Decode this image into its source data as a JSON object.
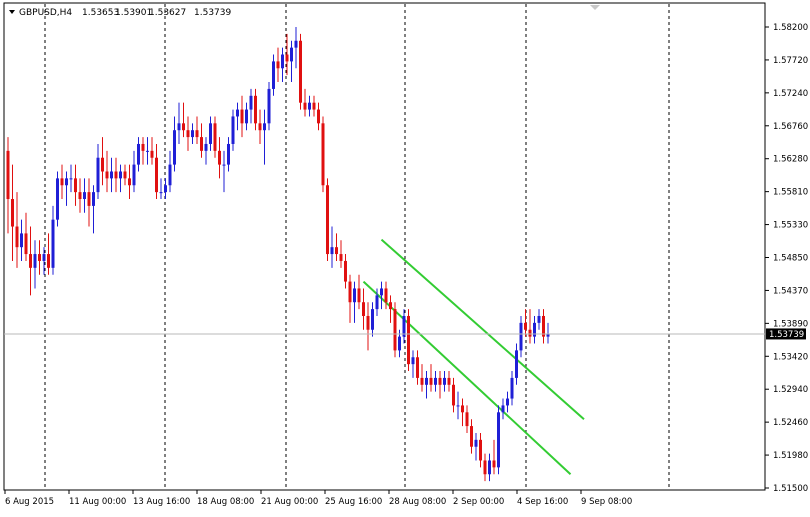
{
  "header": {
    "menu_arrow_icon": "triangle-down",
    "symbol": "GBPUSD,H4",
    "open": "1.53653",
    "high": "1.53901",
    "low": "1.53627",
    "close": "1.53739"
  },
  "current_price_label": "1.53739",
  "colors": {
    "bull": "#1f1fd6",
    "bear": "#e01010",
    "channel": "#33cc33",
    "grid": "#000000",
    "price_label_bg": "#000000",
    "price_label_fg": "#ffffff"
  },
  "chart_data": {
    "type": "candlestick",
    "symbol": "GBPUSD",
    "timeframe": "H4",
    "y_tick_labels": [
      "1.58200",
      "1.57720",
      "1.57240",
      "1.56760",
      "1.56280",
      "1.55810",
      "1.55330",
      "1.54850",
      "1.54370",
      "1.53890",
      "1.53420",
      "1.52940",
      "1.52460",
      "1.51980",
      "1.51500"
    ],
    "x_tick_labels": [
      "6 Aug 2015",
      "11 Aug 00:00",
      "13 Aug 16:00",
      "18 Aug 08:00",
      "21 Aug 00:00",
      "25 Aug 16:00",
      "28 Aug 08:00",
      "2 Sep 00:00",
      "4 Sep 16:00",
      "9 Sep 08:00"
    ],
    "ylim": [
      1.515,
      1.5835
    ],
    "candles": [
      [
        1.564,
        1.566,
        1.552,
        1.557
      ],
      [
        1.557,
        1.562,
        1.548,
        1.553
      ],
      [
        1.553,
        1.558,
        1.547,
        1.55
      ],
      [
        1.55,
        1.554,
        1.548,
        1.552
      ],
      [
        1.552,
        1.555,
        1.548,
        1.549
      ],
      [
        1.549,
        1.553,
        1.543,
        1.547
      ],
      [
        1.547,
        1.551,
        1.544,
        1.549
      ],
      [
        1.549,
        1.551,
        1.546,
        1.548
      ],
      [
        1.548,
        1.55,
        1.546,
        1.549
      ],
      [
        1.549,
        1.552,
        1.546,
        1.547
      ],
      [
        1.547,
        1.556,
        1.546,
        1.554
      ],
      [
        1.554,
        1.561,
        1.553,
        1.56
      ],
      [
        1.56,
        1.562,
        1.557,
        1.559
      ],
      [
        1.559,
        1.561,
        1.556,
        1.56
      ],
      [
        1.56,
        1.562,
        1.558,
        1.56
      ],
      [
        1.56,
        1.562,
        1.556,
        1.558
      ],
      [
        1.558,
        1.56,
        1.555,
        1.557
      ],
      [
        1.557,
        1.56,
        1.555,
        1.558
      ],
      [
        1.558,
        1.56,
        1.553,
        1.556
      ],
      [
        1.556,
        1.559,
        1.552,
        1.558
      ],
      [
        1.558,
        1.565,
        1.557,
        1.563
      ],
      [
        1.563,
        1.566,
        1.559,
        1.561
      ],
      [
        1.561,
        1.564,
        1.558,
        1.56
      ],
      [
        1.56,
        1.563,
        1.558,
        1.561
      ],
      [
        1.561,
        1.563,
        1.558,
        1.56
      ],
      [
        1.56,
        1.562,
        1.558,
        1.561
      ],
      [
        1.561,
        1.562,
        1.559,
        1.56
      ],
      [
        1.56,
        1.562,
        1.557,
        1.559
      ],
      [
        1.559,
        1.564,
        1.558,
        1.562
      ],
      [
        1.562,
        1.566,
        1.561,
        1.565
      ],
      [
        1.565,
        1.566,
        1.562,
        1.564
      ],
      [
        1.564,
        1.566,
        1.562,
        1.564
      ],
      [
        1.564,
        1.566,
        1.562,
        1.563
      ],
      [
        1.563,
        1.565,
        1.557,
        1.558
      ],
      [
        1.558,
        1.56,
        1.557,
        1.558
      ],
      [
        1.558,
        1.56,
        1.557,
        1.559
      ],
      [
        1.559,
        1.564,
        1.558,
        1.562
      ],
      [
        1.562,
        1.569,
        1.561,
        1.567
      ],
      [
        1.567,
        1.571,
        1.565,
        1.568
      ],
      [
        1.568,
        1.571,
        1.566,
        1.567
      ],
      [
        1.567,
        1.569,
        1.564,
        1.566
      ],
      [
        1.566,
        1.568,
        1.565,
        1.567
      ],
      [
        1.567,
        1.569,
        1.565,
        1.566
      ],
      [
        1.566,
        1.568,
        1.563,
        1.564
      ],
      [
        1.564,
        1.566,
        1.562,
        1.565
      ],
      [
        1.565,
        1.569,
        1.564,
        1.568
      ],
      [
        1.568,
        1.569,
        1.563,
        1.564
      ],
      [
        1.564,
        1.566,
        1.56,
        1.562
      ],
      [
        1.562,
        1.564,
        1.558,
        1.562
      ],
      [
        1.562,
        1.566,
        1.561,
        1.565
      ],
      [
        1.565,
        1.57,
        1.564,
        1.569
      ],
      [
        1.569,
        1.571,
        1.567,
        1.57
      ],
      [
        1.57,
        1.572,
        1.566,
        1.568
      ],
      [
        1.568,
        1.571,
        1.567,
        1.57
      ],
      [
        1.57,
        1.573,
        1.568,
        1.572
      ],
      [
        1.572,
        1.573,
        1.567,
        1.568
      ],
      [
        1.568,
        1.57,
        1.565,
        1.567
      ],
      [
        1.567,
        1.57,
        1.562,
        1.568
      ],
      [
        1.568,
        1.574,
        1.567,
        1.573
      ],
      [
        1.573,
        1.578,
        1.572,
        1.577
      ],
      [
        1.577,
        1.579,
        1.574,
        1.576
      ],
      [
        1.576,
        1.579,
        1.574,
        1.578
      ],
      [
        1.578,
        1.581,
        1.575,
        1.577
      ],
      [
        1.577,
        1.58,
        1.574,
        1.579
      ],
      [
        1.579,
        1.582,
        1.576,
        1.58
      ],
      [
        1.58,
        1.581,
        1.57,
        1.571
      ],
      [
        1.571,
        1.573,
        1.569,
        1.57
      ],
      [
        1.57,
        1.572,
        1.569,
        1.571
      ],
      [
        1.571,
        1.572,
        1.569,
        1.57
      ],
      [
        1.57,
        1.571,
        1.567,
        1.568
      ],
      [
        1.568,
        1.569,
        1.558,
        1.559
      ],
      [
        1.559,
        1.56,
        1.548,
        1.549
      ],
      [
        1.549,
        1.553,
        1.547,
        1.55
      ],
      [
        1.55,
        1.552,
        1.548,
        1.549
      ],
      [
        1.549,
        1.551,
        1.547,
        1.548
      ],
      [
        1.548,
        1.549,
        1.544,
        1.545
      ],
      [
        1.545,
        1.546,
        1.539,
        1.542
      ],
      [
        1.542,
        1.545,
        1.539,
        1.544
      ],
      [
        1.544,
        1.546,
        1.541,
        1.542
      ],
      [
        1.542,
        1.544,
        1.538,
        1.54
      ],
      [
        1.54,
        1.542,
        1.535,
        1.538
      ],
      [
        1.538,
        1.542,
        1.537,
        1.541
      ],
      [
        1.541,
        1.544,
        1.54,
        1.543
      ],
      [
        1.543,
        1.545,
        1.541,
        1.544
      ],
      [
        1.544,
        1.545,
        1.541,
        1.542
      ],
      [
        1.542,
        1.543,
        1.539,
        1.541
      ],
      [
        1.541,
        1.542,
        1.534,
        1.535
      ],
      [
        1.535,
        1.538,
        1.534,
        1.537
      ],
      [
        1.537,
        1.541,
        1.536,
        1.54
      ],
      [
        1.54,
        1.541,
        1.532,
        1.533
      ],
      [
        1.533,
        1.535,
        1.531,
        1.534
      ],
      [
        1.534,
        1.535,
        1.53,
        1.531
      ],
      [
        1.531,
        1.533,
        1.529,
        1.53
      ],
      [
        1.53,
        1.532,
        1.528,
        1.531
      ],
      [
        1.531,
        1.533,
        1.529,
        1.53
      ],
      [
        1.53,
        1.532,
        1.529,
        1.531
      ],
      [
        1.531,
        1.532,
        1.528,
        1.53
      ],
      [
        1.53,
        1.532,
        1.529,
        1.531
      ],
      [
        1.531,
        1.532,
        1.529,
        1.53
      ],
      [
        1.53,
        1.531,
        1.526,
        1.527
      ],
      [
        1.527,
        1.529,
        1.525,
        1.527
      ],
      [
        1.527,
        1.528,
        1.524,
        1.526
      ],
      [
        1.526,
        1.527,
        1.523,
        1.524
      ],
      [
        1.524,
        1.525,
        1.52,
        1.521
      ],
      [
        1.521,
        1.523,
        1.519,
        1.522
      ],
      [
        1.522,
        1.523,
        1.518,
        1.519
      ],
      [
        1.519,
        1.52,
        1.516,
        1.517
      ],
      [
        1.517,
        1.52,
        1.516,
        1.519
      ],
      [
        1.519,
        1.522,
        1.517,
        1.518
      ],
      [
        1.518,
        1.527,
        1.517,
        1.526
      ],
      [
        1.526,
        1.528,
        1.525,
        1.527
      ],
      [
        1.527,
        1.529,
        1.526,
        1.528
      ],
      [
        1.528,
        1.532,
        1.527,
        1.531
      ],
      [
        1.531,
        1.536,
        1.53,
        1.535
      ],
      [
        1.535,
        1.54,
        1.534,
        1.539
      ],
      [
        1.539,
        1.541,
        1.537,
        1.538
      ],
      [
        1.538,
        1.541,
        1.536,
        1.537
      ],
      [
        1.537,
        1.54,
        1.536,
        1.539
      ],
      [
        1.539,
        1.541,
        1.538,
        1.54
      ],
      [
        1.54,
        1.541,
        1.536,
        1.537
      ],
      [
        1.537,
        1.539,
        1.536,
        1.5374
      ]
    ],
    "trend_lines": [
      {
        "name": "upper",
        "from": {
          "bar": 83,
          "price": 1.5511
        },
        "to": {
          "bar": 128,
          "price": 1.525
        }
      },
      {
        "name": "lower",
        "from": {
          "bar": 79,
          "price": 1.545
        },
        "to": {
          "bar": 125,
          "price": 1.517
        }
      }
    ],
    "current_price": 1.53739,
    "grid": "vertical dashed at date separators",
    "type_note": "candlestick OHLC"
  }
}
